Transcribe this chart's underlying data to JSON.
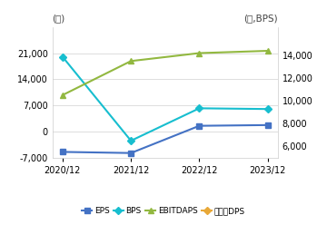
{
  "x_labels": [
    "2020/12",
    "2021/12",
    "2022/12",
    "2023/12"
  ],
  "x_values": [
    0,
    1,
    2,
    3
  ],
  "EPS": [
    -5500,
    -5800,
    1500,
    1700
  ],
  "BPS": [
    20000,
    -2500,
    6200,
    6000
  ],
  "EBITDAPS": [
    10500,
    13500,
    14200,
    14400
  ],
  "DPS": [
    null,
    null,
    null,
    null
  ],
  "left_ylim": [
    -7000,
    28000
  ],
  "left_yticks": [
    -7000,
    0,
    7000,
    14000,
    21000
  ],
  "right_ylim": [
    5000,
    16500
  ],
  "right_yticks": [
    6000,
    8000,
    10000,
    12000,
    14000
  ],
  "left_top_label": "(원)",
  "right_top_label": "(원,BPS)",
  "colors": {
    "EPS": "#4472c4",
    "BPS": "#17becf",
    "EBITDAPS": "#92b840",
    "DPS": "#e8a838"
  },
  "markers": {
    "EPS": "s",
    "BPS": "D",
    "EBITDAPS": "^",
    "DPS": "D"
  },
  "legend_labels": [
    "EPS",
    "BPS",
    "EBITDAPS",
    "보통주DPS"
  ],
  "bg_color": "#ffffff",
  "grid_color": "#d0d0d0"
}
